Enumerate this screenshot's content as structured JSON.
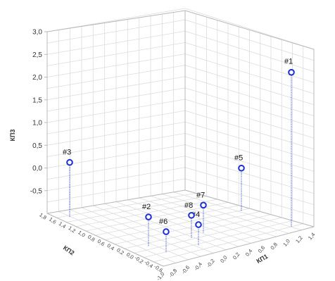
{
  "chart_data": {
    "type": "scatter3d",
    "title": "",
    "zlabel": "КП3",
    "xlabel": "КП1",
    "ylabel": "КП2",
    "zlim": [
      -1.0,
      3.0
    ],
    "z_ticks": [
      "3,0",
      "2,5",
      "2,0",
      "1,5",
      "1,0",
      "0,5",
      "0,0",
      "-0,5"
    ],
    "x_ticks": [
      "-1,0",
      "-0,8",
      "-0,6",
      "-0,4",
      "-0,2",
      "0,0",
      "0,2",
      "0,4",
      "0,6",
      "0,8",
      "1,0",
      "1,2",
      "1,4"
    ],
    "y_ticks": [
      "-0,6",
      "-0,4",
      "-0,2",
      "0,0",
      "0,2",
      "0,4",
      "0,6",
      "0,8",
      "1,0",
      "1,2",
      "1,4",
      "1,6",
      "1,8"
    ],
    "grid": true,
    "marker_color": "#1a2fd6",
    "points": [
      {
        "label": "#1",
        "z": 2.4
      },
      {
        "label": "#2",
        "z": -0.35
      },
      {
        "label": "#3",
        "z": 0.2
      },
      {
        "label": "#4",
        "z": -0.55
      },
      {
        "label": "#5",
        "z": -0.05
      },
      {
        "label": "#6",
        "z": -0.55
      },
      {
        "label": "#7",
        "z": -0.4
      },
      {
        "label": "#8",
        "z": -0.5
      }
    ]
  }
}
